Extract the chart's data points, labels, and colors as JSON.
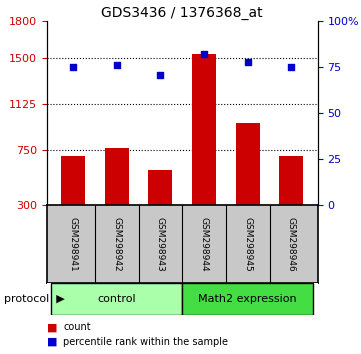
{
  "title": "GDS3436 / 1376368_at",
  "samples": [
    "GSM298941",
    "GSM298942",
    "GSM298943",
    "GSM298944",
    "GSM298945",
    "GSM298946"
  ],
  "bar_values": [
    700,
    770,
    590,
    1530,
    970,
    700
  ],
  "dot_values": [
    75,
    76,
    71,
    82,
    78,
    75
  ],
  "bar_color": "#cc0000",
  "dot_color": "#0000cc",
  "y_left_min": 300,
  "y_left_max": 1800,
  "y_left_ticks": [
    300,
    750,
    1125,
    1500,
    1800
  ],
  "y_right_min": 0,
  "y_right_max": 100,
  "y_right_ticks": [
    0,
    25,
    50,
    75,
    100
  ],
  "y_right_tick_labels": [
    "0",
    "25",
    "50",
    "75",
    "100%"
  ],
  "dotted_lines": [
    750,
    1125,
    1500
  ],
  "groups": [
    {
      "label": "control",
      "start": 0,
      "end": 2,
      "color": "#aaffaa"
    },
    {
      "label": "Math2 expression",
      "start": 3,
      "end": 5,
      "color": "#44dd44"
    }
  ],
  "legend": [
    {
      "label": "count",
      "color": "#cc0000"
    },
    {
      "label": "percentile rank within the sample",
      "color": "#0000cc"
    }
  ],
  "bar_width": 0.55,
  "x_positions": [
    0,
    1,
    2,
    3,
    4,
    5
  ],
  "xlim": [
    -0.6,
    5.6
  ]
}
